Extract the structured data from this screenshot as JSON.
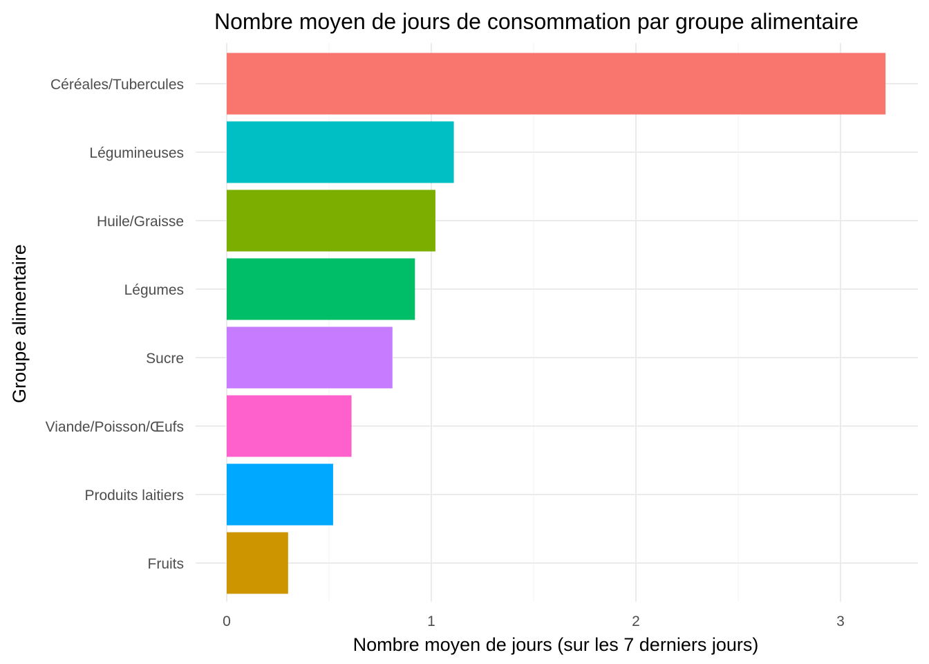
{
  "chart_data": {
    "type": "bar",
    "orientation": "horizontal",
    "title": "Nombre moyen de jours de consommation par groupe alimentaire",
    "xlabel": "Nombre moyen de jours (sur les 7 derniers jours)",
    "ylabel": "Groupe alimentaire",
    "categories": [
      "Céréales/Tubercules",
      "Légumineuses",
      "Huile/Graisse",
      "Légumes",
      "Sucre",
      "Viande/Poisson/Œufs",
      "Produits laitiers",
      "Fruits"
    ],
    "values": [
      3.22,
      1.11,
      1.02,
      0.92,
      0.81,
      0.61,
      0.52,
      0.3
    ],
    "colors": [
      "#F8766D",
      "#00BFC4",
      "#7CAE00",
      "#00BE67",
      "#C77CFF",
      "#FF61CC",
      "#00A9FF",
      "#CD9600"
    ],
    "xlim": [
      0,
      3.22
    ],
    "xticks": [
      0,
      1,
      2,
      3
    ],
    "xtick_labels": [
      "0",
      "1",
      "2",
      "3"
    ],
    "grid": true,
    "legend": "none"
  }
}
